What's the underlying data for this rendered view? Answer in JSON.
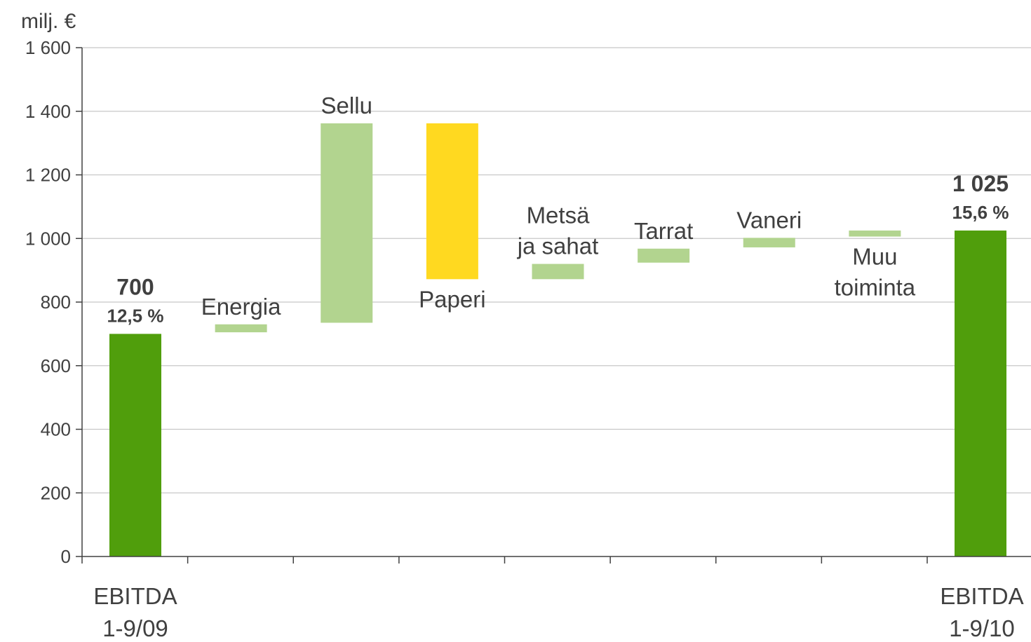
{
  "chart_data": {
    "type": "bar",
    "subtype": "waterfall",
    "ylabel": "milj. €",
    "ylim": [
      0,
      1600
    ],
    "yticks": [
      0,
      200,
      400,
      600,
      800,
      1000,
      1200,
      1400,
      1600
    ],
    "ytick_labels": [
      "0",
      "200",
      "400",
      "600",
      "800",
      "1 000",
      "1 200",
      "1 400",
      "1 600"
    ],
    "grid": true,
    "colors": {
      "total": "#509e0c",
      "increase": "#b2d48f",
      "decrease": "#ffd920",
      "grid": "#c8c8c8",
      "axis": "#404040"
    },
    "bars": [
      {
        "label": "EBITDA 1-9/09",
        "label_lines": [
          "EBITDA",
          "1-9/09"
        ],
        "kind": "total",
        "start": 0,
        "end": 700,
        "value_label": "700",
        "sub_label": "12,5 %"
      },
      {
        "label": "Energia",
        "label_lines": [
          "Energia"
        ],
        "kind": "increase",
        "start": 705,
        "end": 730
      },
      {
        "label": "Sellu",
        "label_lines": [
          "Sellu"
        ],
        "kind": "increase",
        "start": 735,
        "end": 1362
      },
      {
        "label": "Paperi",
        "label_lines": [
          "Paperi"
        ],
        "kind": "decrease",
        "start": 1362,
        "end": 872
      },
      {
        "label": "Metsä ja sahat",
        "label_lines": [
          "Metsä",
          "ja sahat"
        ],
        "kind": "increase",
        "start": 872,
        "end": 920
      },
      {
        "label": "Tarrat",
        "label_lines": [
          "Tarrat"
        ],
        "kind": "increase",
        "start": 924,
        "end": 968
      },
      {
        "label": "Vaneri",
        "label_lines": [
          "Vaneri"
        ],
        "kind": "increase",
        "start": 972,
        "end": 1002
      },
      {
        "label": "Muu toiminta",
        "label_lines": [
          "Muu",
          "toiminta"
        ],
        "kind": "increase",
        "start": 1006,
        "end": 1025
      },
      {
        "label": "EBITDA 1-9/10",
        "label_lines": [
          "EBITDA",
          "1-9/10"
        ],
        "kind": "total",
        "start": 0,
        "end": 1025,
        "value_label": "1 025",
        "sub_label": "15,6 %"
      }
    ]
  }
}
